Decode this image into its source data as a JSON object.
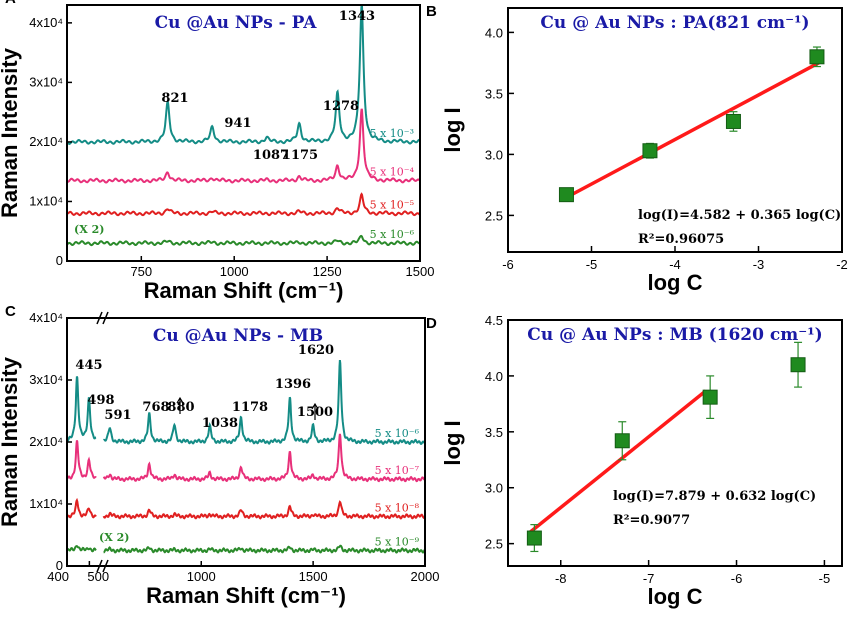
{
  "chart_data": [
    {
      "panel": "A",
      "type": "line",
      "title": "Cu @Au NPs - PA",
      "xlabel": "Raman Shift (cm⁻¹)",
      "ylabel": "Raman Intensity",
      "xlim": [
        550,
        1500
      ],
      "ylim": [
        0,
        43000
      ],
      "xticks": [
        "750",
        "1000",
        "1250",
        "1500"
      ],
      "yticks": [
        "0",
        "1x10⁴",
        "2x10⁴",
        "3x10⁴",
        "4x10⁴"
      ],
      "peaks": [
        {
          "x": 821,
          "label": "821"
        },
        {
          "x": 941,
          "label": "941"
        },
        {
          "x": 1087,
          "label": "1087"
        },
        {
          "x": 1175,
          "label": "1175"
        },
        {
          "x": 1278,
          "label": "1278"
        },
        {
          "x": 1343,
          "label": "1343"
        }
      ],
      "series": [
        {
          "name": "5 x 10⁻³",
          "color": "#148c86",
          "baseline": 20000,
          "heights": [
            6500,
            2500,
            700,
            3000,
            8000,
            23000
          ]
        },
        {
          "name": "5 x 10⁻⁴",
          "color": "#e8307a",
          "baseline": 13500,
          "heights": [
            1500,
            500,
            100,
            700,
            2500,
            12000
          ]
        },
        {
          "name": "5 x 10⁻⁵",
          "color": "#e02020",
          "baseline": 8000,
          "heights": [
            800,
            300,
            50,
            300,
            900,
            3000
          ]
        },
        {
          "name": "5 x 10⁻⁶",
          "color": "#2a8a2a",
          "baseline": 3000,
          "heights": [
            300,
            150,
            30,
            150,
            400,
            1200
          ]
        }
      ],
      "annotation": "(X 2)"
    },
    {
      "panel": "B",
      "type": "scatter",
      "title": "Cu @ Au NPs : PA(821 cm⁻¹)",
      "xlabel": "log C",
      "ylabel": "log I",
      "xlim": [
        -6,
        -2
      ],
      "ylim": [
        2.2,
        4.2
      ],
      "xticks": [
        "-6",
        "-5",
        "-4",
        "-3",
        "-2"
      ],
      "yticks": [
        "2.5",
        "3.0",
        "3.5",
        "4.0"
      ],
      "points": [
        {
          "x": -5.3,
          "y": 2.67,
          "err": 0.03
        },
        {
          "x": -4.3,
          "y": 3.03,
          "err": 0.06
        },
        {
          "x": -3.3,
          "y": 3.27,
          "err": 0.08
        },
        {
          "x": -2.3,
          "y": 3.8,
          "err": 0.08
        }
      ],
      "fit": {
        "slope": 0.365,
        "intercept": 4.582,
        "x_range": [
          -5.35,
          -2.25
        ]
      },
      "equation": "log(I)=4.582 + 0.365 log(C)",
      "r2": "R²=0.96075"
    },
    {
      "panel": "C",
      "type": "line",
      "title": "Cu @Au NPs - MB",
      "xlabel": "Raman Shift (cm⁻¹)",
      "ylabel": "Raman Intensity",
      "xlim": [
        400,
        2000
      ],
      "ylim": [
        0,
        40000
      ],
      "xticks": [
        "400",
        "500",
        "1000",
        "1500",
        "2000"
      ],
      "yticks": [
        "0",
        "1x10⁴",
        "2x10⁴",
        "3x10⁴",
        "4x10⁴"
      ],
      "peaks": [
        {
          "x": 445,
          "label": "445"
        },
        {
          "x": 498,
          "label": "498"
        },
        {
          "x": 591,
          "label": "591"
        },
        {
          "x": 768,
          "label": "768"
        },
        {
          "x": 880,
          "label": "880"
        },
        {
          "x": 1038,
          "label": "1038"
        },
        {
          "x": 1178,
          "label": "1178"
        },
        {
          "x": 1396,
          "label": "1396"
        },
        {
          "x": 1500,
          "label": "1500"
        },
        {
          "x": 1620,
          "label": "1620"
        }
      ],
      "series": [
        {
          "name": "5 x 10⁻⁶",
          "color": "#148c86",
          "baseline": 20000,
          "heights": [
            10500,
            7000,
            2200,
            4500,
            2800,
            2500,
            4000,
            7000,
            2500,
            13000
          ]
        },
        {
          "name": "5 x 10⁻⁷",
          "color": "#e8307a",
          "baseline": 14000,
          "heights": [
            6000,
            3000,
            800,
            2500,
            800,
            1000,
            2000,
            4500,
            700,
            7500
          ]
        },
        {
          "name": "5 x 10⁻⁸",
          "color": "#e02020",
          "baseline": 8000,
          "heights": [
            2500,
            1200,
            400,
            1000,
            300,
            400,
            1000,
            1600,
            300,
            2500
          ]
        },
        {
          "name": "5 x 10⁻⁹",
          "color": "#2a8a2a",
          "baseline": 2500,
          "heights": [
            1000,
            500,
            150,
            400,
            100,
            200,
            400,
            500,
            100,
            700
          ]
        }
      ],
      "annotation": "(X 2)"
    },
    {
      "panel": "D",
      "type": "scatter",
      "title": "Cu @ Au NPs : MB (1620 cm⁻¹)",
      "xlabel": "log C",
      "ylabel": "log I",
      "xlim": [
        -8.6,
        -4.8
      ],
      "ylim": [
        2.3,
        4.5
      ],
      "xticks": [
        "-8",
        "-7",
        "-6",
        "-5"
      ],
      "yticks": [
        "2.5",
        "3.0",
        "3.5",
        "4.0",
        "4.5"
      ],
      "points": [
        {
          "x": -8.3,
          "y": 2.55,
          "err": 0.12
        },
        {
          "x": -7.3,
          "y": 3.42,
          "err": 0.17
        },
        {
          "x": -6.3,
          "y": 3.81,
          "err": 0.19
        },
        {
          "x": -5.3,
          "y": 4.1,
          "err": 0.2
        }
      ],
      "fit": {
        "slope": 0.632,
        "intercept": 7.879,
        "x_range": [
          -8.35,
          -6.35
        ]
      },
      "equation": "log(I)=7.879 + 0.632 log(C)",
      "r2": "R²=0.9077"
    }
  ]
}
